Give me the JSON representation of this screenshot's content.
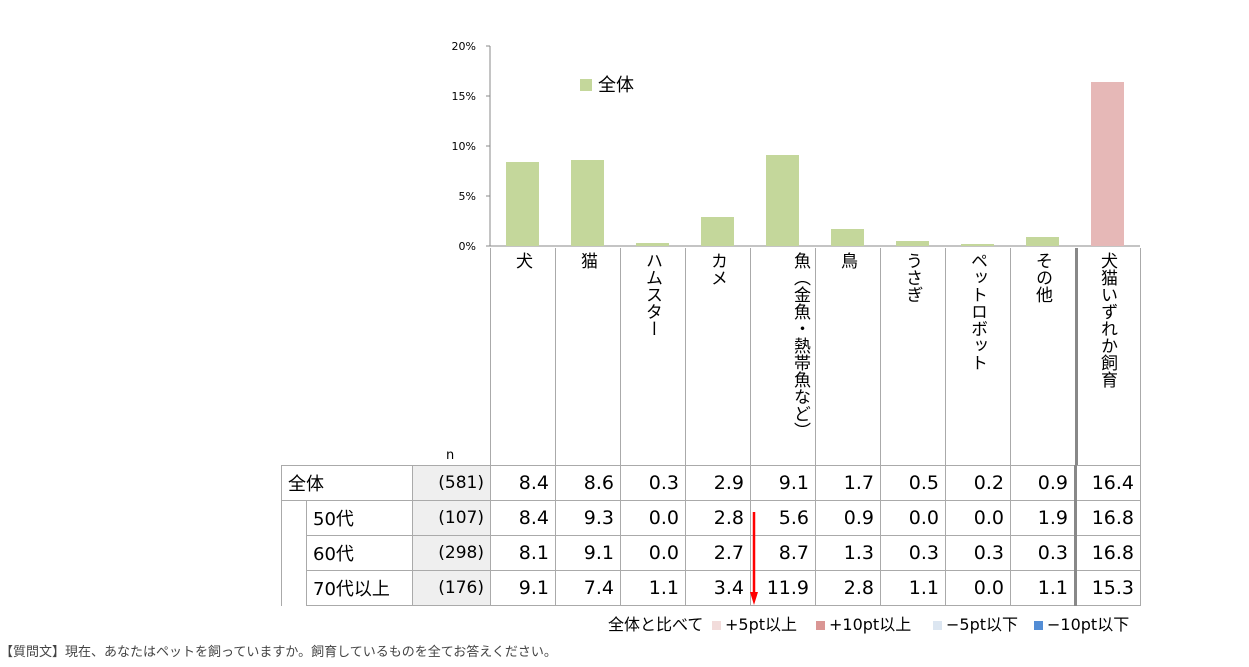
{
  "chart_data": {
    "type": "bar",
    "title": "",
    "categories": [
      "犬",
      "猫",
      "ハムスター",
      "カメ",
      "魚（金魚・熱帯魚など）",
      "鳥",
      "うさぎ",
      "ペットロボット",
      "その他",
      "犬猫いずれか飼育"
    ],
    "series": [
      {
        "name": "全体",
        "values": [
          8.4,
          8.6,
          0.3,
          2.9,
          9.1,
          1.7,
          0.5,
          0.2,
          0.9,
          16.4
        ],
        "color": "#c4d79b"
      }
    ],
    "highlight_color": "#e6b8b7",
    "highlight_index": 9,
    "ylim": [
      0,
      20
    ],
    "yticks": [
      "0%",
      "5%",
      "10%",
      "15%",
      "20%"
    ],
    "ytick_values": [
      0,
      5,
      10,
      15,
      20
    ],
    "grid": false,
    "legend_position": "top-left"
  },
  "table": {
    "n_header": "n",
    "rows": [
      {
        "label": "全体",
        "n": "(581)",
        "values": [
          "8.4",
          "8.6",
          "0.3",
          "2.9",
          "9.1",
          "1.7",
          "0.5",
          "0.2",
          "0.9",
          "16.4"
        ]
      },
      {
        "label": "50代",
        "n": "(107)",
        "values": [
          "8.4",
          "9.3",
          "0.0",
          "2.8",
          "5.6",
          "0.9",
          "0.0",
          "0.0",
          "1.9",
          "16.8"
        ]
      },
      {
        "label": "60代",
        "n": "(298)",
        "values": [
          "8.1",
          "9.1",
          "0.0",
          "2.7",
          "8.7",
          "1.3",
          "0.3",
          "0.3",
          "0.3",
          "16.8"
        ]
      },
      {
        "label": "70代以上",
        "n": "(176)",
        "values": [
          "9.1",
          "7.4",
          "1.1",
          "3.4",
          "11.9",
          "2.8",
          "1.1",
          "0.0",
          "1.1",
          "15.3"
        ]
      }
    ]
  },
  "compare_legend": {
    "label": "全体と比べて",
    "items": [
      {
        "text": "+5pt以上",
        "color": "#f2dcdb"
      },
      {
        "text": "+10pt以上",
        "color": "#da9694"
      },
      {
        "text": "−5pt以下",
        "color": "#dce6f1"
      },
      {
        "text": "−10pt以下",
        "color": "#538dd5"
      }
    ]
  },
  "arrow_color": "#ff0000",
  "question": "【質問文】現在、あなたはペットを飼っていますか。飼育しているものを全てお答えください。"
}
